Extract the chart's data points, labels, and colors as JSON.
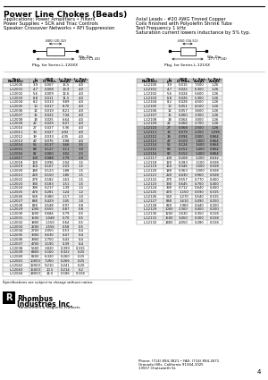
{
  "title": "Power Line Chokes (Beads)",
  "sub_left1": "Applications: Power Amplifiers • Filters",
  "sub_left2": "Power Supplies • SCR and Triac Controls",
  "sub_left3": "Speaker Crossover Networks • RFI Suppression",
  "sub_right1": "Axial Leads - #20 AWG Tinned Copper",
  "sub_right2": "Coils finished with Polyolefin Shrink Tube",
  "sub_right3": "Test Frequency 1 kHz",
  "sub_right4": "Saturation current lowers inductance by 5% typ.",
  "pkg_label_left": "Pkg. for Series L-120XX",
  "pkg_label_right": "Pkg. for Series L-121XX",
  "wire_dia": "Wir. Dia.",
  "dim_left_top": ".800 (20.32)",
  "dim_left_bot": ".450 (11.43)",
  "dim_right_top": ".650 (16.51)",
  "dim_right_bot": ".277 (7.04)",
  "col_headers": [
    "Part\nNumber",
    "L\nμH",
    "DCR\nΩ Max.",
    "I - Sat.\nAmps",
    "I - Rat.\nAmps"
  ],
  "table_left": [
    [
      "L-12000",
      "3.9",
      "0.007",
      "15.5",
      "4.0"
    ],
    [
      "L-12001",
      "4.7",
      "0.008",
      "13.9",
      "4.0"
    ],
    [
      "L-12002",
      "5.6",
      "0.009",
      "12.6",
      "4.0"
    ],
    [
      "L-12003",
      "6.8",
      "0.011",
      "11.5",
      "4.0"
    ],
    [
      "L-12004",
      "8.2",
      "0.013",
      "9.89",
      "4.0"
    ],
    [
      "L-12005",
      "10",
      "0.017",
      "8.70",
      "4.0"
    ],
    [
      "L-12006",
      "12",
      "0.019",
      "8.21",
      "4.0"
    ],
    [
      "L-12007",
      "15",
      "0.022",
      "7.34",
      "4.0"
    ],
    [
      "L-12008",
      "18",
      "0.025",
      "6.64",
      "4.0"
    ],
    [
      "L-12009",
      "22",
      "0.029",
      "6.07",
      "4.0"
    ],
    [
      "L-12010",
      "27",
      "0.027",
      "5.36",
      "4.0"
    ],
    [
      "L-12011",
      "33",
      "0.027",
      "4.92",
      "4.0"
    ],
    [
      "L-12012",
      "39",
      "0.033",
      "4.35",
      "4.0"
    ],
    [
      "L-12013",
      "47",
      "0.075",
      "3.98",
      "4.0"
    ],
    [
      "L-12014",
      "56",
      "0.117",
      "3.66",
      "3.5"
    ],
    [
      "L-12015",
      "68",
      "0.127",
      "3.11",
      "3.0"
    ],
    [
      "L-12016",
      "82",
      "0.060",
      "3.02",
      "2.5"
    ],
    [
      "L-12017",
      "100",
      "0.088",
      "2.79",
      "2.0"
    ],
    [
      "L-12018",
      "120",
      "0.096",
      "2.04",
      "1.5"
    ],
    [
      "L-12019",
      "150",
      "0.107",
      "2.03",
      "1.5"
    ],
    [
      "L-12020",
      "180",
      "0.123",
      "1.88",
      "1.5"
    ],
    [
      "L-12021",
      "220",
      "0.150",
      "1.80",
      "1.5"
    ],
    [
      "L-12022",
      "270",
      "0.182",
      "1.63",
      "1.5"
    ],
    [
      "L-12023",
      "330",
      "0.183",
      "1.51",
      "1.5"
    ],
    [
      "L-12024",
      "390",
      "0.217",
      "1.39",
      "1.5"
    ],
    [
      "L-12025",
      "470",
      "0.281",
      "1.24",
      "1.2"
    ],
    [
      "L-12026",
      "560",
      "0.380",
      "1.17",
      "1.0"
    ],
    [
      "L-12027",
      "680",
      "0.429",
      "1.05",
      "1.0"
    ],
    [
      "L-12028",
      "820",
      "0.548",
      "0.97",
      "0.8"
    ],
    [
      "L-12029",
      "1000",
      "0.555",
      "0.87",
      "0.8"
    ],
    [
      "L-12030",
      "1200",
      "0.684",
      "0.79",
      "0.5"
    ],
    [
      "L-12031",
      "1500",
      "1.048",
      "0.70",
      "0.5"
    ],
    [
      "L-12032",
      "1800",
      "1.150",
      "0.64",
      "0.5"
    ],
    [
      "L-12033",
      "2200",
      "1.556",
      "0.58",
      "0.5"
    ],
    [
      "L-12034",
      "2700",
      "2.050",
      "0.53",
      "0.4"
    ],
    [
      "L-12035",
      "3300",
      "0.630",
      "0.47",
      "0.4"
    ],
    [
      "L-12036",
      "3900",
      "2.750",
      "0.43",
      "0.4"
    ],
    [
      "L-12037",
      "4700",
      "3.190",
      "0.39",
      "0.4"
    ],
    [
      "L-12038",
      "5600",
      "3.820",
      "0.399",
      "0.315"
    ],
    [
      "L-12039",
      "6800",
      "5.160",
      "0.322",
      "0.25"
    ],
    [
      "L-12040",
      "8200",
      "6.320",
      "0.260",
      "0.25"
    ],
    [
      "L-12041",
      "10000",
      "7.260",
      "0.266",
      "0.25"
    ],
    [
      "L-12042",
      "12000",
      "9.210",
      "0.241",
      "0.20"
    ],
    [
      "L-12043",
      "15000",
      "10.5",
      "0.214",
      "0.2"
    ],
    [
      "L-12044",
      "18000",
      "14.6",
      "0.186",
      "0.158"
    ]
  ],
  "table_right": [
    [
      "L-12100",
      "3.9",
      "0.015",
      "7.500",
      "1.26"
    ],
    [
      "L-12101",
      "4.7",
      "0.022",
      "6.300",
      "1.26"
    ],
    [
      "L-12102",
      "5.6",
      "0.024",
      "5.600",
      "1.26"
    ],
    [
      "L-12103",
      "6.8",
      "0.026",
      "5.300",
      "1.26"
    ],
    [
      "L-12104",
      "8.2",
      "0.028",
      "4.500",
      "1.26"
    ],
    [
      "L-12105",
      "10",
      "0.051",
      "4.100",
      "1.26"
    ],
    [
      "L-12106",
      "12",
      "0.057",
      "3.600",
      "1.26"
    ],
    [
      "L-12107",
      "15",
      "0.060",
      "3.300",
      "1.26"
    ],
    [
      "L-12108",
      "18",
      "0.064",
      "3.000",
      "1.26"
    ],
    [
      "L-12109",
      "22",
      "0.066",
      "2.700",
      "1.26"
    ],
    [
      "L-12110",
      "27",
      "0.068",
      "2.500",
      "1.26"
    ],
    [
      "L-12111",
      "33",
      "0.079",
      "2.200",
      "1.098"
    ],
    [
      "L-12112",
      "39",
      "0.094",
      "2.000",
      "0.864"
    ],
    [
      "L-12113",
      "47",
      "0.109",
      "1.800",
      "0.864"
    ],
    [
      "L-12114",
      "56",
      "0.124",
      "1.600",
      "0.864"
    ],
    [
      "L-12115",
      "68",
      "0.152",
      "1.400",
      "0.864"
    ],
    [
      "L-12116",
      "82",
      "0.152",
      "1.400",
      "0.864"
    ],
    [
      "L-12117",
      "100",
      "0.208",
      "1.200",
      "0.632"
    ],
    [
      "L-12118",
      "120",
      "0.283",
      "1.100",
      "0.508"
    ],
    [
      "L-12119",
      "150",
      "0.346",
      "1.000",
      "0.508"
    ],
    [
      "L-12120",
      "180",
      "0.363",
      "1.000",
      "0.508"
    ],
    [
      "L-12121",
      "220",
      "0.430",
      "0.960",
      "0.508"
    ],
    [
      "L-12122",
      "270",
      "0.557",
      "0.770",
      "0.400"
    ],
    [
      "L-12123",
      "330",
      "0.645",
      "0.700",
      "0.400"
    ],
    [
      "L-12124",
      "390",
      "0.712",
      "0.640",
      "0.400"
    ],
    [
      "L-12125",
      "470",
      "1.150",
      "0.590",
      "0.315"
    ],
    [
      "L-12126",
      "560",
      "1.270",
      "0.540",
      "0.315"
    ],
    [
      "L-12127",
      "680",
      "1.610",
      "0.490",
      "0.250"
    ],
    [
      "L-12128",
      "820",
      "1.960",
      "0.440",
      "0.200"
    ],
    [
      "L-12129",
      "1000",
      "2.300",
      "0.400",
      "0.200"
    ],
    [
      "L-12130",
      "1200",
      "2.630",
      "0.350",
      "0.158"
    ],
    [
      "L-12131",
      "1500",
      "3.450",
      "0.300",
      "0.158"
    ],
    [
      "L-12132",
      "1800",
      "4.050",
      "0.280",
      "0.158"
    ]
  ],
  "footer": "Specifications are subject to change without notice.",
  "company_line1": "Rhombus",
  "company_line2": "Industries Inc.",
  "company_sub": "Transformers & Magnetic Products",
  "page_num": "4",
  "bg_color": "#ffffff"
}
